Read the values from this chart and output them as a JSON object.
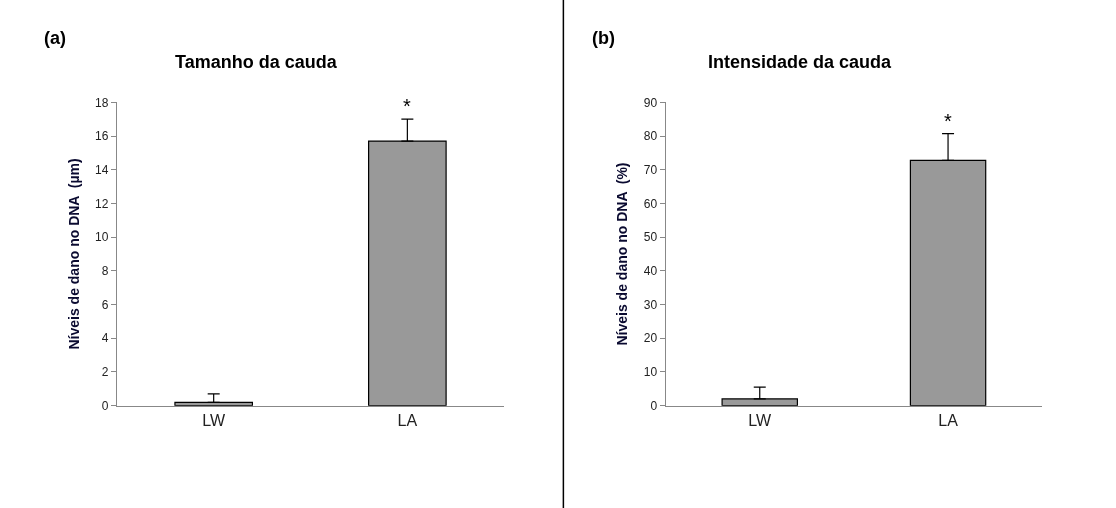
{
  "chart_data": [
    {
      "type": "bar",
      "title": "Tamanho da cauda",
      "ylabel": "Níveis de dano no DNA  (µm)",
      "categories": [
        "LW",
        "LA"
      ],
      "values": [
        0.2,
        15.7
      ],
      "errors": [
        [
          0.2,
          0.7
        ],
        [
          15.7,
          17
        ]
      ],
      "color": "#999999",
      "ylim": [
        0,
        18
      ],
      "yticks": [
        0,
        2,
        4,
        6,
        8,
        10,
        12,
        14,
        16,
        18
      ],
      "annotations": [
        "(a)",
        "*"
      ]
    },
    {
      "type": "bar",
      "title": "Intensidade da cauda",
      "ylabel": "Níveis de dano no DNA  (%)",
      "categories": [
        "LW",
        "LA"
      ],
      "values": [
        2,
        72.8
      ],
      "errors": [
        [
          2,
          5.5
        ],
        [
          72.8,
          80.7
        ]
      ],
      "color": "#999999",
      "ylim": [
        0,
        90
      ],
      "yticks": [
        0,
        10,
        20,
        30,
        40,
        50,
        60,
        70,
        80,
        90
      ],
      "annotations": [
        "(b)",
        "*"
      ]
    }
  ]
}
